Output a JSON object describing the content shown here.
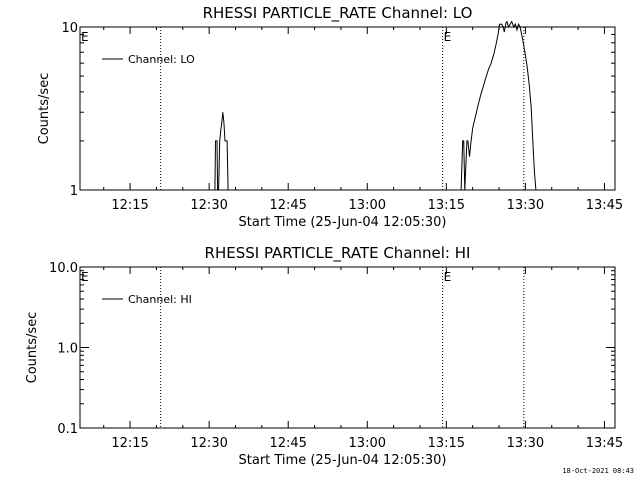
{
  "footer": {
    "timestamp": "18-Oct-2021 08:43"
  },
  "chart_data": [
    {
      "type": "line",
      "title": "RHESSI PARTICLE_RATE Channel: LO",
      "xlabel": "Start Time (25-Jun-04 12:05:30)",
      "ylabel": "Counts/sec",
      "x_unit": "minutes after 12:05:30",
      "xlim": [
        0,
        101.5
      ],
      "ylim": [
        1,
        10
      ],
      "yscale": "log",
      "x_ticks": [
        {
          "label": "12:15",
          "value": 9.5
        },
        {
          "label": "12:30",
          "value": 24.5
        },
        {
          "label": "12:45",
          "value": 39.5
        },
        {
          "label": "13:00",
          "value": 54.5
        },
        {
          "label": "13:15",
          "value": 69.5
        },
        {
          "label": "13:30",
          "value": 84.5
        },
        {
          "label": "13:45",
          "value": 99.5
        }
      ],
      "y_ticks": [
        {
          "label": "1",
          "value": 1
        },
        {
          "label": "10",
          "value": 10
        }
      ],
      "legend": {
        "label": "Channel: LO",
        "position": "top-left"
      },
      "event_markers": [
        {
          "x": 0,
          "label": "E"
        },
        {
          "x": 15.3,
          "label": ""
        },
        {
          "x": 68.8,
          "label": "E"
        },
        {
          "x": 84.2,
          "label": ""
        }
      ],
      "series": [
        {
          "name": "Channel: LO",
          "x": [
            25.6,
            25.7,
            26.0,
            26.1,
            26.3,
            26.5,
            26.7,
            26.9,
            27.1,
            27.3,
            27.5,
            27.7,
            27.9,
            28.1,
            28.2,
            28.3
          ],
          "values": [
            1,
            2.0,
            2.0,
            1,
            1,
            2.0,
            2.3,
            2.6,
            3.0,
            2.6,
            2.0,
            2.0,
            2.0,
            1,
            1,
            1
          ]
        },
        {
          "name": "Channel: LO",
          "x": [
            72.3,
            72.6,
            72.8,
            73.0,
            73.4,
            73.6,
            73.9,
            74.2,
            74.5,
            75.0,
            75.5,
            76.0,
            76.5,
            77.0,
            77.5,
            78.0,
            78.5,
            79.0,
            79.3,
            79.6,
            80.0,
            80.3,
            80.5,
            80.8,
            81.0,
            81.3,
            81.6,
            81.9,
            82.3,
            82.6,
            82.9,
            83.2,
            83.5,
            83.8,
            84.0,
            84.4,
            84.8,
            85.2,
            85.6,
            85.9,
            86.2,
            86.5
          ],
          "values": [
            1,
            2.0,
            2.0,
            1,
            2.0,
            2.0,
            1.6,
            2.0,
            2.4,
            2.8,
            3.3,
            3.8,
            4.3,
            4.9,
            5.5,
            6.0,
            6.8,
            8.0,
            9.0,
            10.4,
            10.4,
            10.0,
            9.3,
            10.6,
            10.8,
            10.0,
            10.4,
            10.8,
            10.0,
            10.4,
            9.6,
            10.4,
            10.0,
            9.0,
            8.3,
            7.0,
            5.8,
            4.5,
            3.2,
            2.0,
            1.3,
            1
          ]
        }
      ]
    },
    {
      "type": "line",
      "title": "RHESSI PARTICLE_RATE Channel: HI",
      "xlabel": "Start Time (25-Jun-04 12:05:30)",
      "ylabel": "Counts/sec",
      "x_unit": "minutes after 12:05:30",
      "xlim": [
        0,
        101.5
      ],
      "ylim": [
        0.1,
        10
      ],
      "yscale": "log",
      "x_ticks": [
        {
          "label": "12:15",
          "value": 9.5
        },
        {
          "label": "12:30",
          "value": 24.5
        },
        {
          "label": "12:45",
          "value": 39.5
        },
        {
          "label": "13:00",
          "value": 54.5
        },
        {
          "label": "13:15",
          "value": 69.5
        },
        {
          "label": "13:30",
          "value": 84.5
        },
        {
          "label": "13:45",
          "value": 99.5
        }
      ],
      "y_ticks": [
        {
          "label": "0.1",
          "value": 0.1
        },
        {
          "label": "1.0",
          "value": 1
        },
        {
          "label": "10.0",
          "value": 10
        }
      ],
      "legend": {
        "label": "Channel: HI",
        "position": "top-left"
      },
      "event_markers": [
        {
          "x": 0,
          "label": "E"
        },
        {
          "x": 15.3,
          "label": ""
        },
        {
          "x": 68.8,
          "label": "E"
        },
        {
          "x": 84.2,
          "label": ""
        }
      ],
      "series": []
    }
  ]
}
